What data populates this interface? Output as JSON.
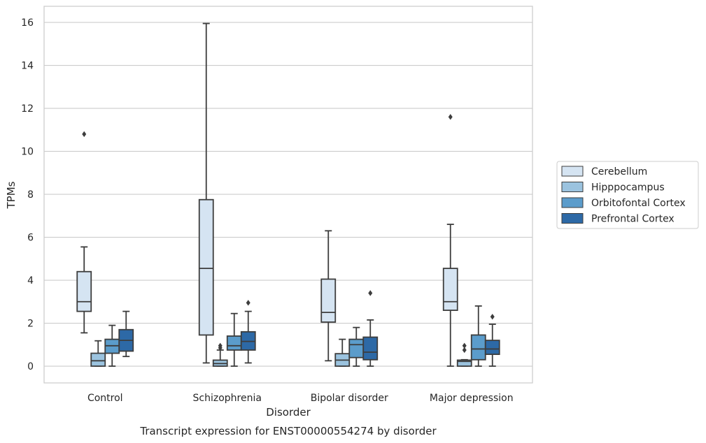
{
  "chart_data": {
    "type": "box",
    "title": "Transcript expression for ENST00000554274 by disorder",
    "xlabel": "Disorder",
    "ylabel": "TPMs",
    "ylim": [
      -0.78,
      16.75
    ],
    "yticks": [
      0,
      2,
      4,
      6,
      8,
      10,
      12,
      14,
      16
    ],
    "grid": "horizontal",
    "legend_position": "right",
    "categories": [
      "Control",
      "Schizophrenia",
      "Bipolar disorder",
      "Major depression"
    ],
    "series": [
      {
        "name": "Cerebellum",
        "color": "#d5e4f2",
        "boxes": [
          {
            "whislo": 1.55,
            "q1": 2.55,
            "med": 3.0,
            "q3": 4.4,
            "whishi": 5.55,
            "fliers": [
              10.8
            ]
          },
          {
            "whislo": 0.15,
            "q1": 1.45,
            "med": 4.55,
            "q3": 7.75,
            "whishi": 15.95,
            "fliers": []
          },
          {
            "whislo": 0.25,
            "q1": 2.05,
            "med": 2.5,
            "q3": 4.05,
            "whishi": 6.3,
            "fliers": []
          },
          {
            "whislo": 0.0,
            "q1": 2.6,
            "med": 3.0,
            "q3": 4.55,
            "whishi": 6.6,
            "fliers": [
              11.6
            ]
          }
        ]
      },
      {
        "name": "Hipppocampus",
        "color": "#9bc3df",
        "boxes": [
          {
            "whislo": 0.0,
            "q1": 0.0,
            "med": 0.25,
            "q3": 0.6,
            "whishi": 1.18,
            "fliers": []
          },
          {
            "whislo": 0.0,
            "q1": 0.0,
            "med": 0.12,
            "q3": 0.28,
            "whishi": 0.75,
            "fliers": [
              0.85,
              0.95
            ]
          },
          {
            "whislo": 0.0,
            "q1": 0.0,
            "med": 0.28,
            "q3": 0.58,
            "whishi": 1.25,
            "fliers": []
          },
          {
            "whislo": 0.0,
            "q1": 0.0,
            "med": 0.22,
            "q3": 0.28,
            "whishi": 0.3,
            "fliers": [
              0.75,
              0.95
            ]
          }
        ]
      },
      {
        "name": "Orbitofontal Cortex",
        "color": "#5b9ccb",
        "boxes": [
          {
            "whislo": 0.0,
            "q1": 0.6,
            "med": 0.95,
            "q3": 1.25,
            "whishi": 1.9,
            "fliers": []
          },
          {
            "whislo": 0.0,
            "q1": 0.75,
            "med": 0.95,
            "q3": 1.4,
            "whishi": 2.45,
            "fliers": []
          },
          {
            "whislo": 0.0,
            "q1": 0.4,
            "med": 1.0,
            "q3": 1.25,
            "whishi": 1.8,
            "fliers": []
          },
          {
            "whislo": 0.0,
            "q1": 0.3,
            "med": 0.8,
            "q3": 1.45,
            "whishi": 2.8,
            "fliers": []
          }
        ]
      },
      {
        "name": "Prefrontal Cortex",
        "color": "#2d69a6",
        "boxes": [
          {
            "whislo": 0.45,
            "q1": 0.7,
            "med": 1.2,
            "q3": 1.7,
            "whishi": 2.55,
            "fliers": []
          },
          {
            "whislo": 0.15,
            "q1": 0.75,
            "med": 1.15,
            "q3": 1.6,
            "whishi": 2.55,
            "fliers": [
              2.95
            ]
          },
          {
            "whislo": 0.0,
            "q1": 0.3,
            "med": 0.65,
            "q3": 1.35,
            "whishi": 2.15,
            "fliers": [
              3.4
            ]
          },
          {
            "whislo": 0.0,
            "q1": 0.55,
            "med": 0.8,
            "q3": 1.2,
            "whishi": 1.95,
            "fliers": [
              2.3
            ]
          }
        ]
      }
    ]
  }
}
